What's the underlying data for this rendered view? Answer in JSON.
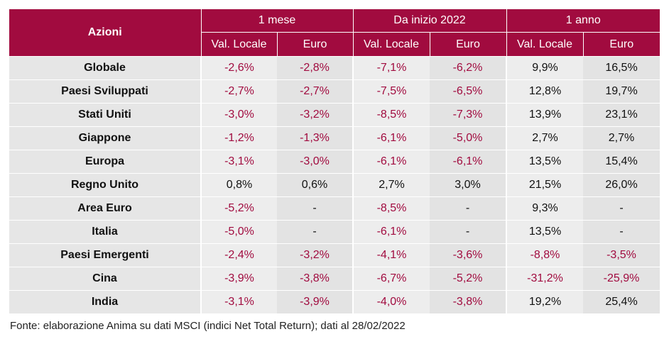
{
  "table": {
    "corner_label": "Azioni",
    "groups": [
      "1 mese",
      "Da inizio 2022",
      "1 anno"
    ],
    "subheaders": [
      "Val. Locale",
      "Euro",
      "Val. Locale",
      "Euro",
      "Val. Locale",
      "Euro"
    ],
    "rows": [
      {
        "name": "Globale",
        "values": [
          "-2,6%",
          "-2,8%",
          "-7,1%",
          "-6,2%",
          "9,9%",
          "16,5%"
        ]
      },
      {
        "name": "Paesi Sviluppati",
        "values": [
          "-2,7%",
          "-2,7%",
          "-7,5%",
          "-6,5%",
          "12,8%",
          "19,7%"
        ]
      },
      {
        "name": "Stati Uniti",
        "values": [
          "-3,0%",
          "-3,2%",
          "-8,5%",
          "-7,3%",
          "13,9%",
          "23,1%"
        ]
      },
      {
        "name": "Giappone",
        "values": [
          "-1,2%",
          "-1,3%",
          "-6,1%",
          "-5,0%",
          "2,7%",
          "2,7%"
        ]
      },
      {
        "name": "Europa",
        "values": [
          "-3,1%",
          "-3,0%",
          "-6,1%",
          "-6,1%",
          "13,5%",
          "15,4%"
        ]
      },
      {
        "name": "Regno Unito",
        "values": [
          "0,8%",
          "0,6%",
          "2,7%",
          "3,0%",
          "21,5%",
          "26,0%"
        ]
      },
      {
        "name": "Area Euro",
        "values": [
          "-5,2%",
          "-",
          "-8,5%",
          "-",
          "9,3%",
          "-"
        ]
      },
      {
        "name": "Italia",
        "values": [
          "-5,0%",
          "-",
          "-6,1%",
          "-",
          "13,5%",
          "-"
        ]
      },
      {
        "name": "Paesi Emergenti",
        "values": [
          "-2,4%",
          "-3,2%",
          "-4,1%",
          "-3,6%",
          "-8,8%",
          "-3,5%"
        ]
      },
      {
        "name": "Cina",
        "values": [
          "-3,9%",
          "-3,8%",
          "-6,7%",
          "-5,2%",
          "-31,2%",
          "-25,9%"
        ]
      },
      {
        "name": "India",
        "values": [
          "-3,1%",
          "-3,9%",
          "-4,0%",
          "-3,8%",
          "19,2%",
          "25,4%"
        ]
      }
    ]
  },
  "source_note": "Fonte: elaborazione Anima su dati MSCI (indici Net Total Return); dati al 28/02/2022",
  "colors": {
    "header_bg": "#a10b3f",
    "negative_text": "#a10b3f",
    "cell_bg": "#ededed"
  }
}
